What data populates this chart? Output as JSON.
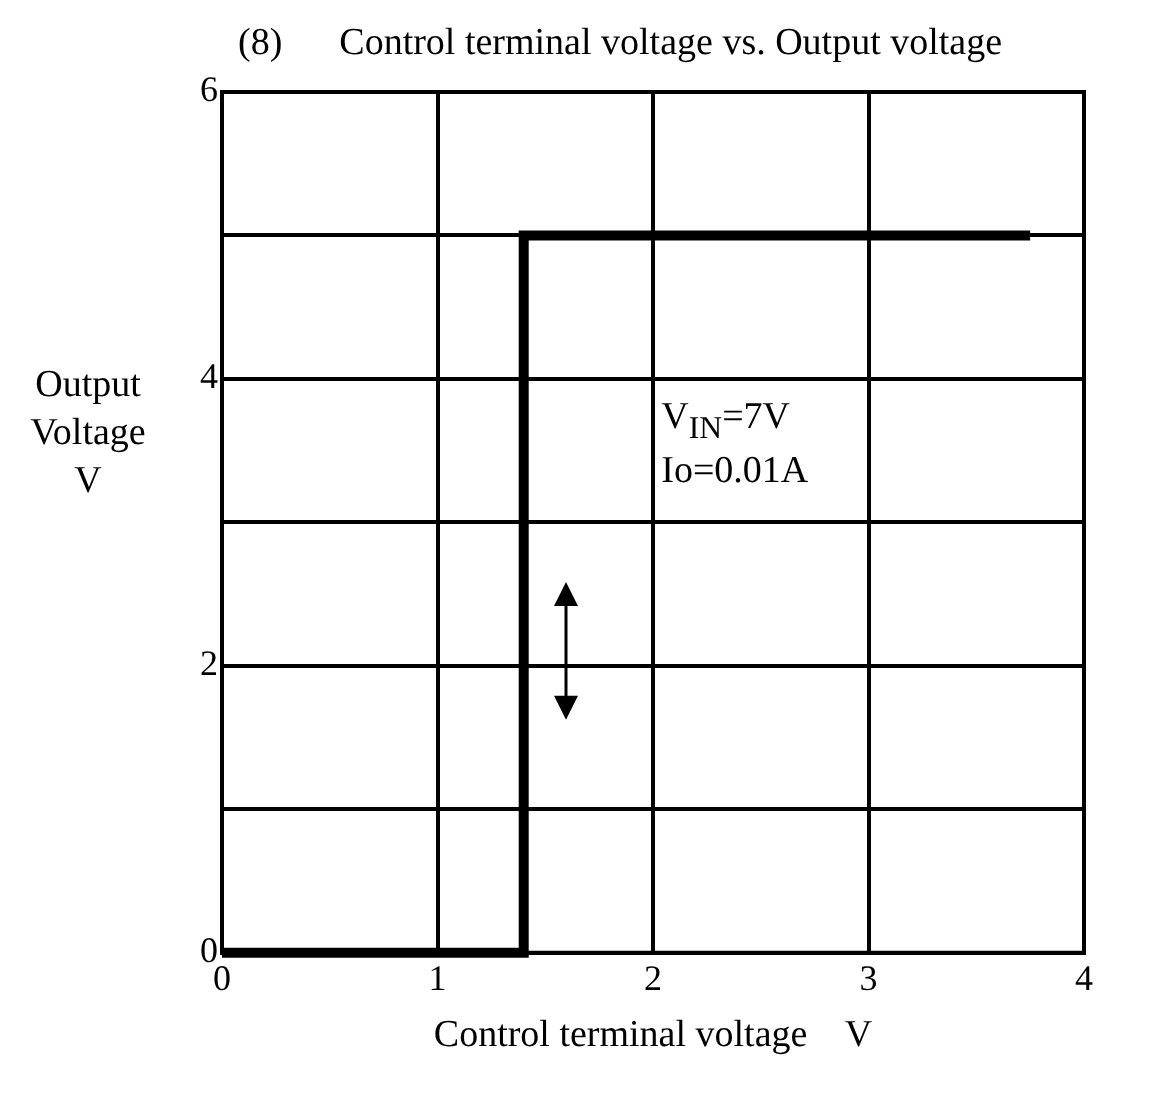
{
  "chart_data": {
    "type": "line",
    "title": "(8)      Control terminal voltage vs. Output voltage",
    "xlabel": "Control terminal voltage    V",
    "ylabel": "Output\nVoltage\nV",
    "series": [
      {
        "color": "#000000",
        "x": [
          0,
          1.4,
          1.4,
          3.75
        ],
        "values": [
          0,
          0,
          5,
          5
        ]
      }
    ],
    "xlim": [
      0,
      4
    ],
    "xticks": [
      0,
      1,
      2,
      3,
      4
    ],
    "ylim": [
      0,
      6
    ],
    "yticks": [
      0,
      {
        "value": 1,
        "label": null
      },
      2,
      {
        "value": 3,
        "label": null
      },
      4,
      {
        "value": 5,
        "label": null
      },
      6
    ],
    "grid": true,
    "legend": false,
    "marker": "none",
    "line_style": "solid",
    "annotations": [
      "V$_{IN}$=7V",
      "Io=0.01A"
    ]
  }
}
